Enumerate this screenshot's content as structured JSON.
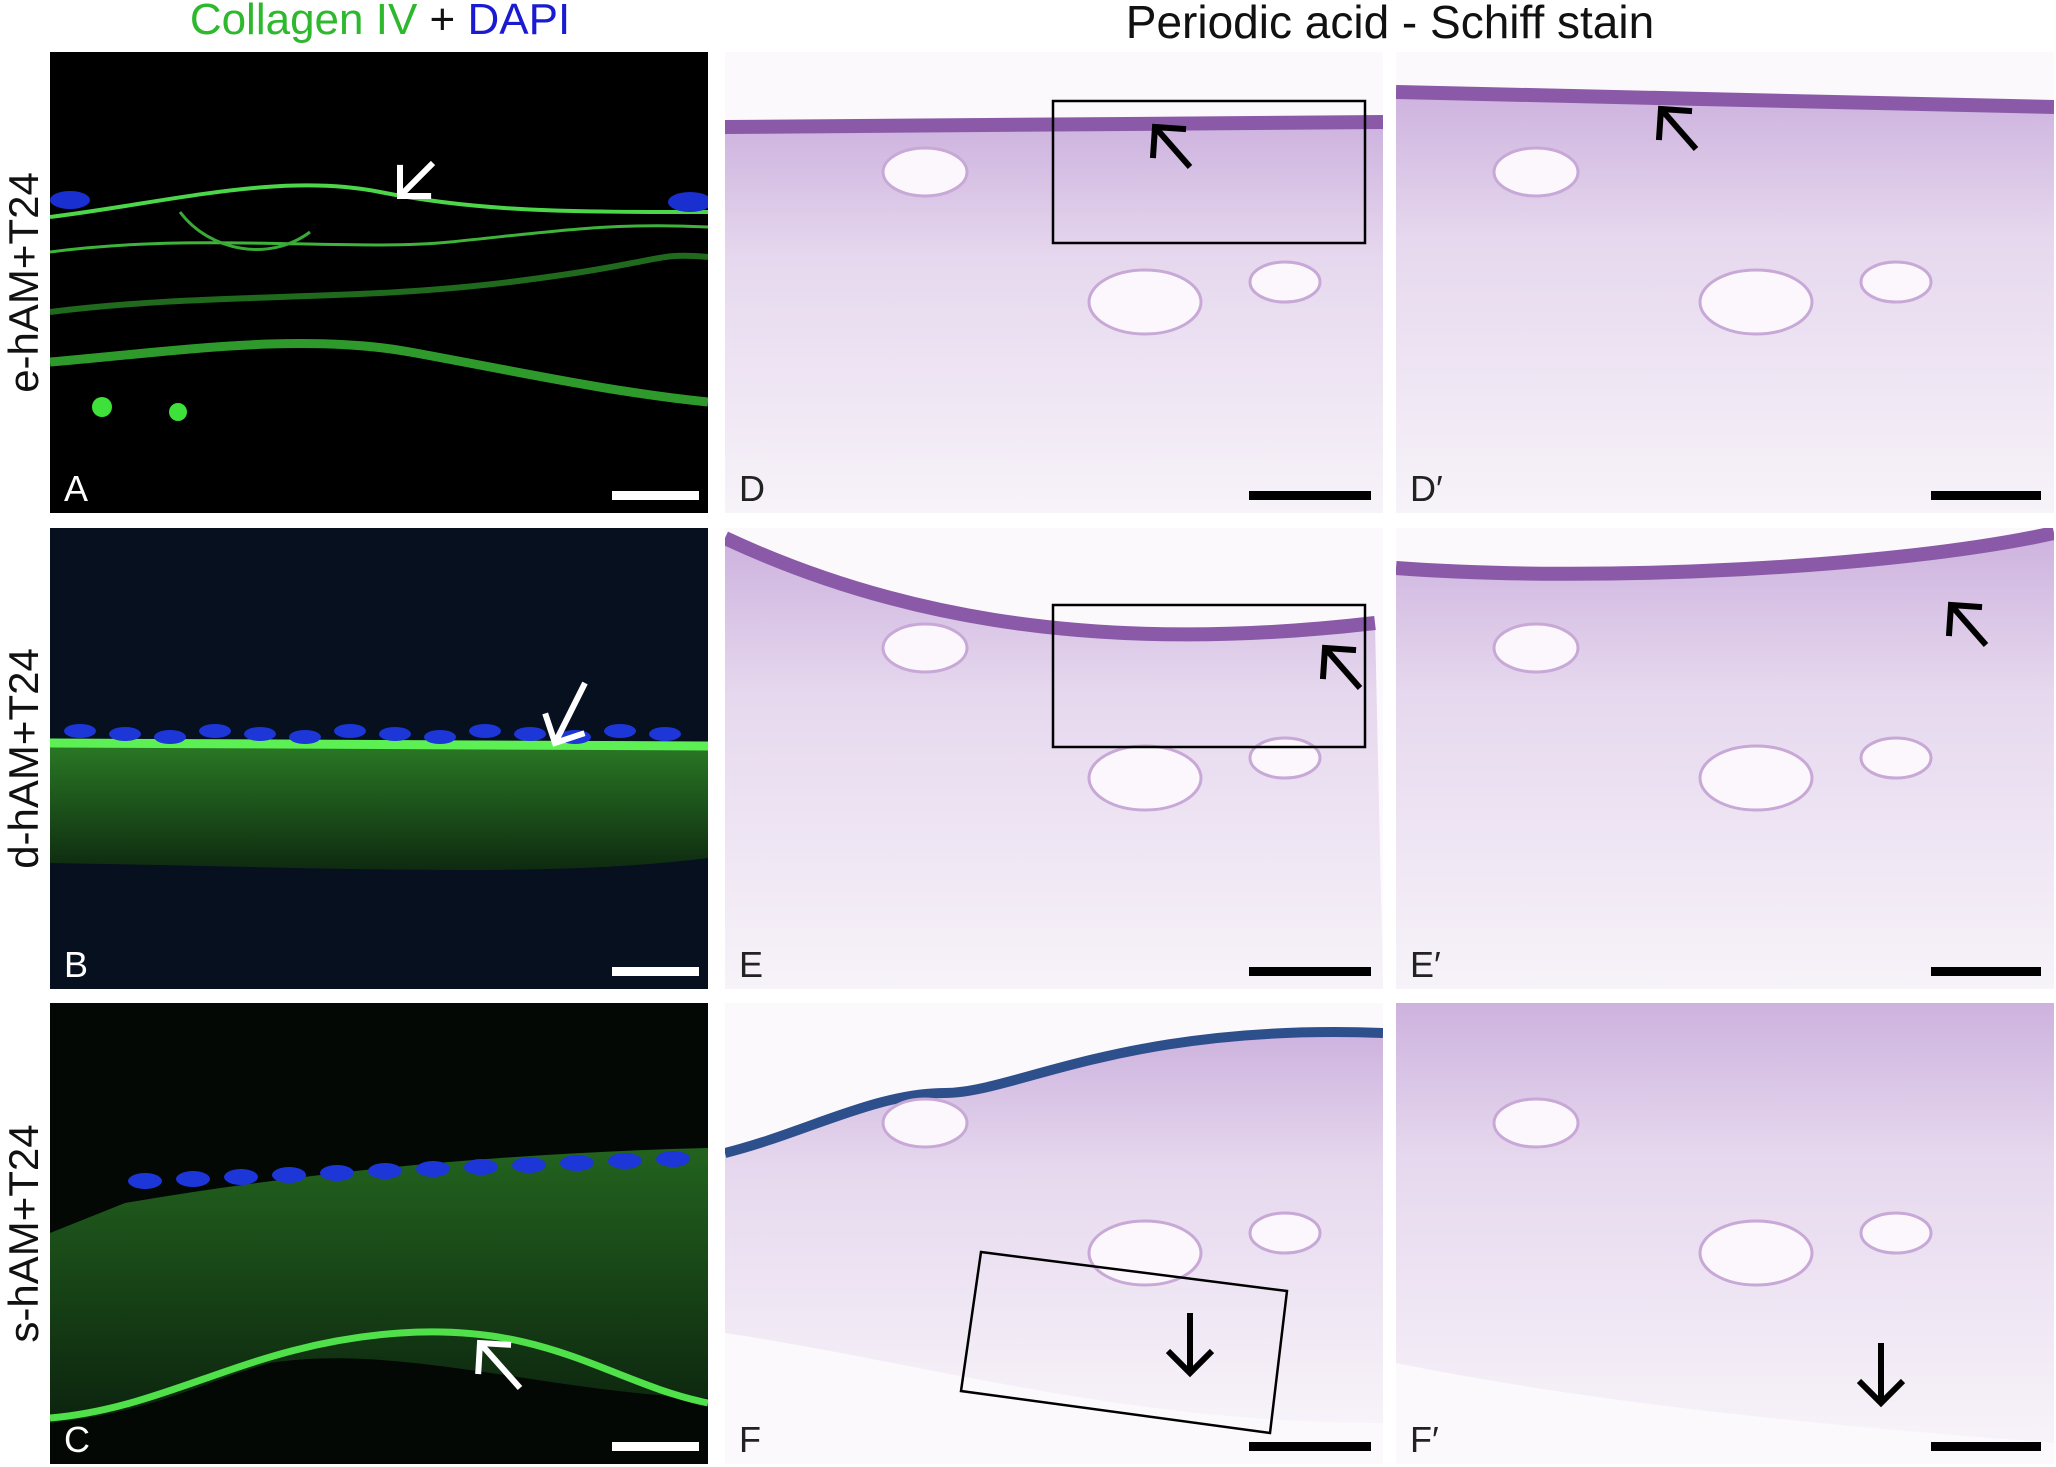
{
  "header": {
    "fluorescence_title": {
      "collagen": "Collagen IV",
      "plus": "+",
      "dapi": "DAPI"
    },
    "pas_title": "Periodic acid - Schiff stain"
  },
  "rows": [
    {
      "label": "e-hAM+T24",
      "panels": [
        "A",
        "D",
        "D′"
      ]
    },
    {
      "label": "d-hAM+T24",
      "panels": [
        "B",
        "E",
        "E′"
      ]
    },
    {
      "label": "s-hAM+T24",
      "panels": [
        "C",
        "F",
        "F′"
      ]
    }
  ]
}
